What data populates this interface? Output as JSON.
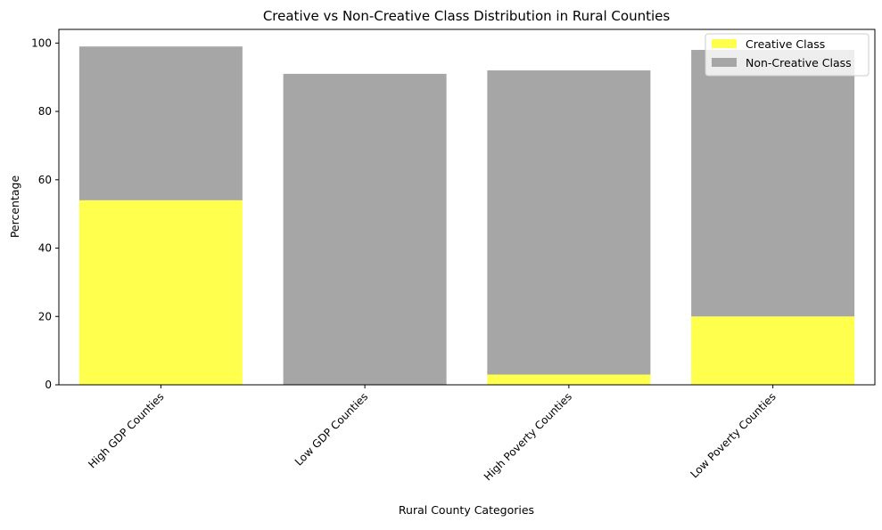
{
  "chart_data": {
    "type": "bar",
    "stacked": true,
    "title": "Creative vs Non-Creative Class Distribution in Rural Counties",
    "xlabel": "Rural County Categories",
    "ylabel": "Percentage",
    "categories": [
      "High GDP Counties",
      "Low GDP Counties",
      "High Poverty Counties",
      "Low Poverty Counties"
    ],
    "series": [
      {
        "name": "Creative Class",
        "color": "#ffff4d",
        "values": [
          54,
          0,
          3,
          20
        ]
      },
      {
        "name": "Non-Creative Class",
        "color": "#a6a6a6",
        "values": [
          45,
          91,
          89,
          78
        ]
      }
    ],
    "ylim": [
      0,
      104
    ],
    "yticks": [
      0,
      20,
      40,
      60,
      80,
      100
    ],
    "grid": false,
    "legend_position": "top-right"
  }
}
